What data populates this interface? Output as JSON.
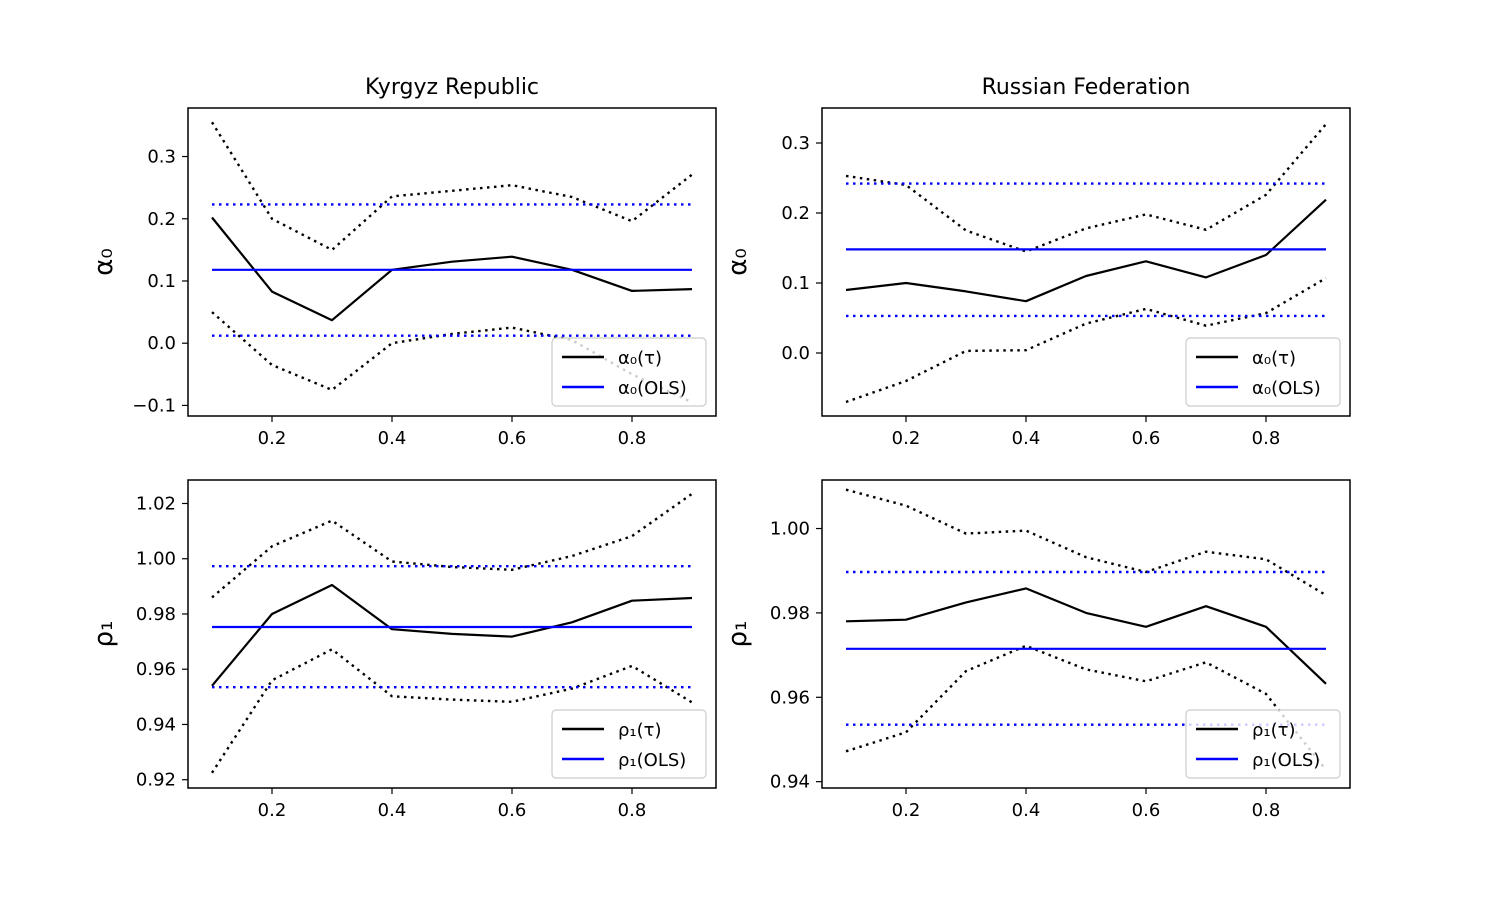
{
  "chart_data": [
    {
      "type": "line",
      "title": "Kyrgyz Republic",
      "xlabel": "",
      "ylabel": "α₀",
      "xlim": [
        0.06,
        0.94
      ],
      "ylim": [
        -0.117,
        0.378
      ],
      "xticks": [
        0.2,
        0.4,
        0.6,
        0.8
      ],
      "xtick_labels": [
        "0.2",
        "0.4",
        "0.6",
        "0.8"
      ],
      "yticks": [
        -0.1,
        0.0,
        0.1,
        0.2,
        0.3
      ],
      "ytick_labels": [
        "−0.1",
        "0.0",
        "0.1",
        "0.2",
        "0.3"
      ],
      "legend_position": "lower-right",
      "series": [
        {
          "name": "α₀(τ)",
          "color": "#000000",
          "style": "solid",
          "legend": true,
          "x": [
            0.1,
            0.2,
            0.3,
            0.4,
            0.5,
            0.6,
            0.7,
            0.8,
            0.9
          ],
          "y": [
            0.202,
            0.083,
            0.037,
            0.118,
            0.131,
            0.139,
            0.118,
            0.084,
            0.087
          ]
        },
        {
          "name": "",
          "color": "#000000",
          "style": "dotted",
          "legend": false,
          "x": [
            0.1,
            0.2,
            0.3,
            0.4,
            0.5,
            0.6,
            0.7,
            0.8,
            0.9
          ],
          "y": [
            0.355,
            0.2,
            0.15,
            0.236,
            0.245,
            0.254,
            0.235,
            0.196,
            0.271
          ]
        },
        {
          "name": "",
          "color": "#000000",
          "style": "dotted",
          "legend": false,
          "x": [
            0.1,
            0.2,
            0.3,
            0.4,
            0.5,
            0.6,
            0.7,
            0.8,
            0.9
          ],
          "y": [
            0.05,
            -0.035,
            -0.075,
            0.0,
            0.015,
            0.025,
            0.005,
            -0.05,
            -0.095
          ]
        },
        {
          "name": "α₀(OLS)",
          "color": "#0000ff",
          "style": "solid",
          "legend": true,
          "x": [
            0.1,
            0.9
          ],
          "y": [
            0.118,
            0.118
          ]
        },
        {
          "name": "",
          "color": "#0000ff",
          "style": "dotted",
          "legend": false,
          "x": [
            0.1,
            0.9
          ],
          "y": [
            0.223,
            0.223
          ]
        },
        {
          "name": "",
          "color": "#0000ff",
          "style": "dotted",
          "legend": false,
          "x": [
            0.1,
            0.9
          ],
          "y": [
            0.012,
            0.012
          ]
        }
      ]
    },
    {
      "type": "line",
      "title": "Russian Federation",
      "xlabel": "",
      "ylabel": "α₀",
      "xlim": [
        0.06,
        0.94
      ],
      "ylim": [
        -0.09,
        0.35
      ],
      "xticks": [
        0.2,
        0.4,
        0.6,
        0.8
      ],
      "xtick_labels": [
        "0.2",
        "0.4",
        "0.6",
        "0.8"
      ],
      "yticks": [
        0.0,
        0.1,
        0.2,
        0.3
      ],
      "ytick_labels": [
        "0.0",
        "0.1",
        "0.2",
        "0.3"
      ],
      "legend_position": "lower-right",
      "series": [
        {
          "name": "α₀(τ)",
          "color": "#000000",
          "style": "solid",
          "legend": true,
          "x": [
            0.1,
            0.2,
            0.3,
            0.4,
            0.5,
            0.6,
            0.7,
            0.8,
            0.9
          ],
          "y": [
            0.09,
            0.1,
            0.088,
            0.074,
            0.11,
            0.131,
            0.108,
            0.14,
            0.219
          ]
        },
        {
          "name": "",
          "color": "#000000",
          "style": "dotted",
          "legend": false,
          "x": [
            0.1,
            0.2,
            0.3,
            0.4,
            0.5,
            0.6,
            0.7,
            0.8,
            0.9
          ],
          "y": [
            0.253,
            0.24,
            0.175,
            0.145,
            0.178,
            0.198,
            0.176,
            0.226,
            0.327
          ]
        },
        {
          "name": "",
          "color": "#000000",
          "style": "dotted",
          "legend": false,
          "x": [
            0.1,
            0.2,
            0.3,
            0.4,
            0.5,
            0.6,
            0.7,
            0.8,
            0.9
          ],
          "y": [
            -0.07,
            -0.04,
            0.003,
            0.004,
            0.042,
            0.063,
            0.039,
            0.057,
            0.107
          ]
        },
        {
          "name": "α₀(OLS)",
          "color": "#0000ff",
          "style": "solid",
          "legend": true,
          "x": [
            0.1,
            0.9
          ],
          "y": [
            0.148,
            0.148
          ]
        },
        {
          "name": "",
          "color": "#0000ff",
          "style": "dotted",
          "legend": false,
          "x": [
            0.1,
            0.9
          ],
          "y": [
            0.242,
            0.242
          ]
        },
        {
          "name": "",
          "color": "#0000ff",
          "style": "dotted",
          "legend": false,
          "x": [
            0.1,
            0.9
          ],
          "y": [
            0.053,
            0.053
          ]
        }
      ]
    },
    {
      "type": "line",
      "title": "",
      "xlabel": "",
      "ylabel": "ρ₁",
      "xlim": [
        0.06,
        0.94
      ],
      "ylim": [
        0.917,
        1.0285
      ],
      "xticks": [
        0.2,
        0.4,
        0.6,
        0.8
      ],
      "xtick_labels": [
        "0.2",
        "0.4",
        "0.6",
        "0.8"
      ],
      "yticks": [
        0.92,
        0.94,
        0.96,
        0.98,
        1.0,
        1.02
      ],
      "ytick_labels": [
        "0.92",
        "0.94",
        "0.96",
        "0.98",
        "1.00",
        "1.02"
      ],
      "legend_position": "lower-right",
      "series": [
        {
          "name": "ρ₁(τ)",
          "color": "#000000",
          "style": "solid",
          "legend": true,
          "x": [
            0.1,
            0.2,
            0.3,
            0.4,
            0.5,
            0.6,
            0.7,
            0.8,
            0.9
          ],
          "y": [
            0.954,
            0.98,
            0.9905,
            0.9745,
            0.9728,
            0.9718,
            0.977,
            0.9848,
            0.9858
          ]
        },
        {
          "name": "",
          "color": "#000000",
          "style": "dotted",
          "legend": false,
          "x": [
            0.1,
            0.2,
            0.3,
            0.4,
            0.5,
            0.6,
            0.7,
            0.8,
            0.9
          ],
          "y": [
            0.986,
            1.0045,
            1.0138,
            0.999,
            0.997,
            0.996,
            1.001,
            1.0082,
            1.0235
          ]
        },
        {
          "name": "",
          "color": "#000000",
          "style": "dotted",
          "legend": false,
          "x": [
            0.1,
            0.2,
            0.3,
            0.4,
            0.5,
            0.6,
            0.7,
            0.8,
            0.9
          ],
          "y": [
            0.9225,
            0.956,
            0.9672,
            0.9502,
            0.949,
            0.9482,
            0.953,
            0.9612,
            0.948
          ]
        },
        {
          "name": "ρ₁(OLS)",
          "color": "#0000ff",
          "style": "solid",
          "legend": true,
          "x": [
            0.1,
            0.9
          ],
          "y": [
            0.9753,
            0.9753
          ]
        },
        {
          "name": "",
          "color": "#0000ff",
          "style": "dotted",
          "legend": false,
          "x": [
            0.1,
            0.9
          ],
          "y": [
            0.9973,
            0.9973
          ]
        },
        {
          "name": "",
          "color": "#0000ff",
          "style": "dotted",
          "legend": false,
          "x": [
            0.1,
            0.9
          ],
          "y": [
            0.9535,
            0.9535
          ]
        }
      ]
    },
    {
      "type": "line",
      "title": "",
      "xlabel": "",
      "ylabel": "ρ₁",
      "xlim": [
        0.06,
        0.94
      ],
      "ylim": [
        0.9385,
        1.0115
      ],
      "xticks": [
        0.2,
        0.4,
        0.6,
        0.8
      ],
      "xtick_labels": [
        "0.2",
        "0.4",
        "0.6",
        "0.8"
      ],
      "yticks": [
        0.94,
        0.96,
        0.98,
        1.0
      ],
      "ytick_labels": [
        "0.94",
        "0.96",
        "0.98",
        "1.00"
      ],
      "legend_position": "lower-right",
      "series": [
        {
          "name": "ρ₁(τ)",
          "color": "#000000",
          "style": "solid",
          "legend": true,
          "x": [
            0.1,
            0.2,
            0.3,
            0.4,
            0.5,
            0.6,
            0.7,
            0.8,
            0.9
          ],
          "y": [
            0.978,
            0.9784,
            0.9825,
            0.9858,
            0.98,
            0.9767,
            0.9816,
            0.9767,
            0.9632
          ]
        },
        {
          "name": "",
          "color": "#000000",
          "style": "dotted",
          "legend": false,
          "x": [
            0.1,
            0.2,
            0.3,
            0.4,
            0.5,
            0.6,
            0.7,
            0.8,
            0.9
          ],
          "y": [
            1.0092,
            1.0054,
            0.9988,
            0.9995,
            0.9932,
            0.9897,
            0.9945,
            0.9927,
            0.9842
          ]
        },
        {
          "name": "",
          "color": "#000000",
          "style": "dotted",
          "legend": false,
          "x": [
            0.1,
            0.2,
            0.3,
            0.4,
            0.5,
            0.6,
            0.7,
            0.8,
            0.9
          ],
          "y": [
            0.9472,
            0.9517,
            0.9662,
            0.9722,
            0.9666,
            0.9638,
            0.9683,
            0.9608,
            0.9428
          ]
        },
        {
          "name": "ρ₁(OLS)",
          "color": "#0000ff",
          "style": "solid",
          "legend": true,
          "x": [
            0.1,
            0.9
          ],
          "y": [
            0.9715,
            0.9715
          ]
        },
        {
          "name": "",
          "color": "#0000ff",
          "style": "dotted",
          "legend": false,
          "x": [
            0.1,
            0.9
          ],
          "y": [
            0.9897,
            0.9897
          ]
        },
        {
          "name": "",
          "color": "#0000ff",
          "style": "dotted",
          "legend": false,
          "x": [
            0.1,
            0.9
          ],
          "y": [
            0.9535,
            0.9535
          ]
        }
      ]
    }
  ]
}
